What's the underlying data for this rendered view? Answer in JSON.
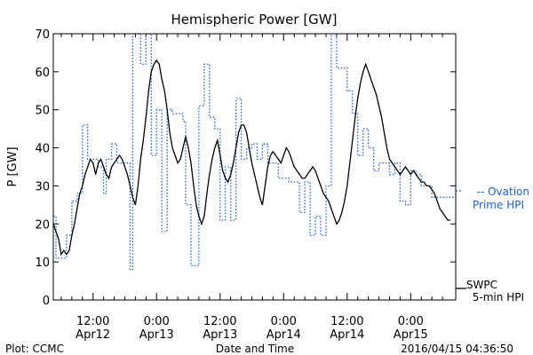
{
  "chart_data": {
    "type": "line",
    "title": "Hemispheric Power [GW]",
    "ylabel": "P [GW]",
    "xlabel": "Date and Time",
    "ylim": [
      0,
      70
    ],
    "yticks": [
      0,
      10,
      20,
      30,
      40,
      50,
      60,
      70
    ],
    "xlim": [
      -7.5,
      68.5
    ],
    "xticks": [
      {
        "x": 0,
        "time": "12:00",
        "date": "Apr12"
      },
      {
        "x": 12,
        "time": "0:00",
        "date": "Apr13"
      },
      {
        "x": 24,
        "time": "12:00",
        "date": "Apr13"
      },
      {
        "x": 36,
        "time": "0:00",
        "date": "Apr14"
      },
      {
        "x": 48,
        "time": "12:00",
        "date": "Apr14"
      },
      {
        "x": 60,
        "time": "0:00",
        "date": "Apr15"
      }
    ],
    "x_units": "hours from 2016-04-12 12:00",
    "grid": false,
    "series": [
      {
        "name_lines": [
          "SWPC",
          "5-min HPI"
        ],
        "color": "#000000",
        "style": "solid",
        "points": [
          [
            -7.5,
            20
          ],
          [
            -7,
            18
          ],
          [
            -6.5,
            16
          ],
          [
            -6,
            12
          ],
          [
            -5.5,
            13
          ],
          [
            -5,
            12
          ],
          [
            -4.5,
            13
          ],
          [
            -4,
            17
          ],
          [
            -3.5,
            20
          ],
          [
            -3,
            24
          ],
          [
            -2.5,
            28
          ],
          [
            -2,
            30
          ],
          [
            -1.5,
            33
          ],
          [
            -1,
            35
          ],
          [
            -0.5,
            37
          ],
          [
            0,
            36
          ],
          [
            0.5,
            33
          ],
          [
            1,
            36
          ],
          [
            1.5,
            37
          ],
          [
            2,
            35
          ],
          [
            2.5,
            33
          ],
          [
            3,
            32
          ],
          [
            3.5,
            35
          ],
          [
            4,
            36
          ],
          [
            4.5,
            37
          ],
          [
            5,
            38
          ],
          [
            5.5,
            37
          ],
          [
            6,
            35
          ],
          [
            6.5,
            33
          ],
          [
            7,
            30
          ],
          [
            7.5,
            27
          ],
          [
            8,
            25
          ],
          [
            8.5,
            30
          ],
          [
            9,
            37
          ],
          [
            9.5,
            42
          ],
          [
            10,
            48
          ],
          [
            10.5,
            55
          ],
          [
            11,
            60
          ],
          [
            11.5,
            62
          ],
          [
            12,
            63
          ],
          [
            12.5,
            62
          ],
          [
            13,
            58
          ],
          [
            13.5,
            55
          ],
          [
            14,
            50
          ],
          [
            14.5,
            44
          ],
          [
            15,
            40
          ],
          [
            15.5,
            38
          ],
          [
            16,
            36
          ],
          [
            16.5,
            37
          ],
          [
            17,
            40
          ],
          [
            17.5,
            43
          ],
          [
            18,
            40
          ],
          [
            18.5,
            36
          ],
          [
            19,
            30
          ],
          [
            19.5,
            25
          ],
          [
            20,
            22
          ],
          [
            20.5,
            20
          ],
          [
            21,
            22
          ],
          [
            21.5,
            28
          ],
          [
            22,
            33
          ],
          [
            22.5,
            37
          ],
          [
            23,
            40
          ],
          [
            23.5,
            42
          ],
          [
            24,
            38
          ],
          [
            24.5,
            34
          ],
          [
            25,
            32
          ],
          [
            25.5,
            31
          ],
          [
            26,
            33
          ],
          [
            26.5,
            36
          ],
          [
            27,
            40
          ],
          [
            27.5,
            44
          ],
          [
            28,
            46
          ],
          [
            28.5,
            46
          ],
          [
            29,
            44
          ],
          [
            29.5,
            40
          ],
          [
            30,
            36
          ],
          [
            30.5,
            33
          ],
          [
            31,
            30
          ],
          [
            31.5,
            27
          ],
          [
            32,
            25
          ],
          [
            32.5,
            30
          ],
          [
            33,
            35
          ],
          [
            33.5,
            38
          ],
          [
            34,
            39
          ],
          [
            34.5,
            38
          ],
          [
            35,
            37
          ],
          [
            35.5,
            36
          ],
          [
            36,
            38
          ],
          [
            36.5,
            40
          ],
          [
            37,
            39
          ],
          [
            37.5,
            37
          ],
          [
            38,
            35
          ],
          [
            38.5,
            34
          ],
          [
            39,
            33
          ],
          [
            39.5,
            32
          ],
          [
            40,
            32
          ],
          [
            40.5,
            33
          ],
          [
            41,
            34
          ],
          [
            41.5,
            35
          ],
          [
            42,
            34
          ],
          [
            42.5,
            32
          ],
          [
            43,
            30
          ],
          [
            43.5,
            28
          ],
          [
            44,
            27
          ],
          [
            44.5,
            26
          ],
          [
            45,
            24
          ],
          [
            45.5,
            22
          ],
          [
            46,
            20
          ],
          [
            46.5,
            21
          ],
          [
            47,
            23
          ],
          [
            47.5,
            26
          ],
          [
            48,
            30
          ],
          [
            48.5,
            36
          ],
          [
            49,
            42
          ],
          [
            49.5,
            48
          ],
          [
            50,
            53
          ],
          [
            50.5,
            57
          ],
          [
            51,
            60
          ],
          [
            51.5,
            62
          ],
          [
            52,
            60
          ],
          [
            52.5,
            58
          ],
          [
            53,
            56
          ],
          [
            53.5,
            54
          ],
          [
            54,
            51
          ],
          [
            54.5,
            48
          ],
          [
            55,
            44
          ],
          [
            55.5,
            40
          ],
          [
            56,
            37
          ],
          [
            56.5,
            36
          ],
          [
            57,
            35
          ],
          [
            57.5,
            34
          ],
          [
            58,
            33
          ],
          [
            58.5,
            34
          ],
          [
            59,
            35
          ],
          [
            59.5,
            34
          ],
          [
            60,
            33
          ],
          [
            60.5,
            34
          ],
          [
            61,
            33
          ],
          [
            61.5,
            32
          ],
          [
            62,
            31
          ],
          [
            62.5,
            31
          ],
          [
            63,
            30
          ],
          [
            63.5,
            30
          ],
          [
            64,
            29
          ],
          [
            64.5,
            28
          ],
          [
            65,
            26
          ],
          [
            65.5,
            24
          ],
          [
            66,
            23
          ],
          [
            66.5,
            22
          ],
          [
            67,
            21
          ],
          [
            67.5,
            21
          ]
        ]
      },
      {
        "name_lines": [
          "-- Ovation",
          "Prime HPI"
        ],
        "color": "#1f5fd6",
        "style": "dotted",
        "points": [
          [
            -7.5,
            22
          ],
          [
            -7,
            22
          ],
          [
            -7,
            11
          ],
          [
            -5,
            11
          ],
          [
            -5,
            17
          ],
          [
            -4,
            17
          ],
          [
            -4,
            26
          ],
          [
            -3,
            26
          ],
          [
            -3,
            28
          ],
          [
            -2,
            28
          ],
          [
            -2,
            46
          ],
          [
            -1,
            46
          ],
          [
            -1,
            37
          ],
          [
            1,
            37
          ],
          [
            1,
            35
          ],
          [
            2,
            35
          ],
          [
            2,
            28
          ],
          [
            2.5,
            28
          ],
          [
            2.5,
            37
          ],
          [
            3.5,
            37
          ],
          [
            3.5,
            41
          ],
          [
            4.5,
            41
          ],
          [
            4.5,
            36
          ],
          [
            7,
            36
          ],
          [
            7,
            8
          ],
          [
            7.5,
            8
          ],
          [
            7.5,
            70
          ],
          [
            9,
            70
          ],
          [
            9,
            62
          ],
          [
            10,
            62
          ],
          [
            10,
            70
          ],
          [
            11,
            70
          ],
          [
            11,
            38
          ],
          [
            12,
            38
          ],
          [
            12,
            50
          ],
          [
            13,
            50
          ],
          [
            13,
            18
          ],
          [
            14,
            18
          ],
          [
            14,
            50
          ],
          [
            15,
            50
          ],
          [
            15,
            49
          ],
          [
            17,
            49
          ],
          [
            17,
            47
          ],
          [
            17.5,
            47
          ],
          [
            17.5,
            25
          ],
          [
            18.5,
            25
          ],
          [
            18.5,
            9
          ],
          [
            20,
            9
          ],
          [
            20,
            51
          ],
          [
            21,
            51
          ],
          [
            21,
            62
          ],
          [
            22,
            62
          ],
          [
            22,
            48
          ],
          [
            23,
            48
          ],
          [
            23,
            45
          ],
          [
            24,
            45
          ],
          [
            24,
            21
          ],
          [
            25,
            21
          ],
          [
            25,
            35
          ],
          [
            26,
            35
          ],
          [
            26,
            21
          ],
          [
            27,
            21
          ],
          [
            27,
            53
          ],
          [
            28,
            53
          ],
          [
            28,
            37
          ],
          [
            29,
            37
          ],
          [
            29,
            40
          ],
          [
            30,
            40
          ],
          [
            30,
            41
          ],
          [
            31,
            41
          ],
          [
            31,
            37
          ],
          [
            32,
            37
          ],
          [
            32,
            41
          ],
          [
            33,
            41
          ],
          [
            33,
            36
          ],
          [
            35,
            36
          ],
          [
            35,
            32
          ],
          [
            37,
            32
          ],
          [
            37,
            31
          ],
          [
            39,
            31
          ],
          [
            39,
            23
          ],
          [
            40,
            23
          ],
          [
            40,
            31
          ],
          [
            41,
            31
          ],
          [
            41,
            17
          ],
          [
            42,
            17
          ],
          [
            42,
            22
          ],
          [
            43,
            22
          ],
          [
            43,
            17
          ],
          [
            44,
            17
          ],
          [
            44,
            30
          ],
          [
            45,
            30
          ],
          [
            45,
            70
          ],
          [
            46,
            70
          ],
          [
            46,
            61
          ],
          [
            48,
            61
          ],
          [
            48,
            55
          ],
          [
            49,
            55
          ],
          [
            49,
            49
          ],
          [
            50,
            49
          ],
          [
            50,
            38
          ],
          [
            51,
            38
          ],
          [
            51,
            45
          ],
          [
            52,
            45
          ],
          [
            52,
            40
          ],
          [
            53,
            40
          ],
          [
            53,
            34
          ],
          [
            54,
            34
          ],
          [
            54,
            36
          ],
          [
            56,
            36
          ],
          [
            56,
            33
          ],
          [
            57,
            33
          ],
          [
            57,
            36
          ],
          [
            58,
            36
          ],
          [
            58,
            26
          ],
          [
            59,
            26
          ],
          [
            59,
            25
          ],
          [
            60,
            25
          ],
          [
            60,
            34
          ],
          [
            61,
            34
          ],
          [
            61,
            33
          ],
          [
            62,
            33
          ],
          [
            62,
            30
          ],
          [
            64,
            30
          ],
          [
            64,
            27
          ],
          [
            68.5,
            27
          ]
        ]
      }
    ]
  },
  "footer": {
    "plot_credit": "Plot: CCMC",
    "timestamp": "2016/04/15 04:36:50"
  },
  "colors": {
    "axis": "#000000",
    "ovation": "#1f5fd6"
  }
}
